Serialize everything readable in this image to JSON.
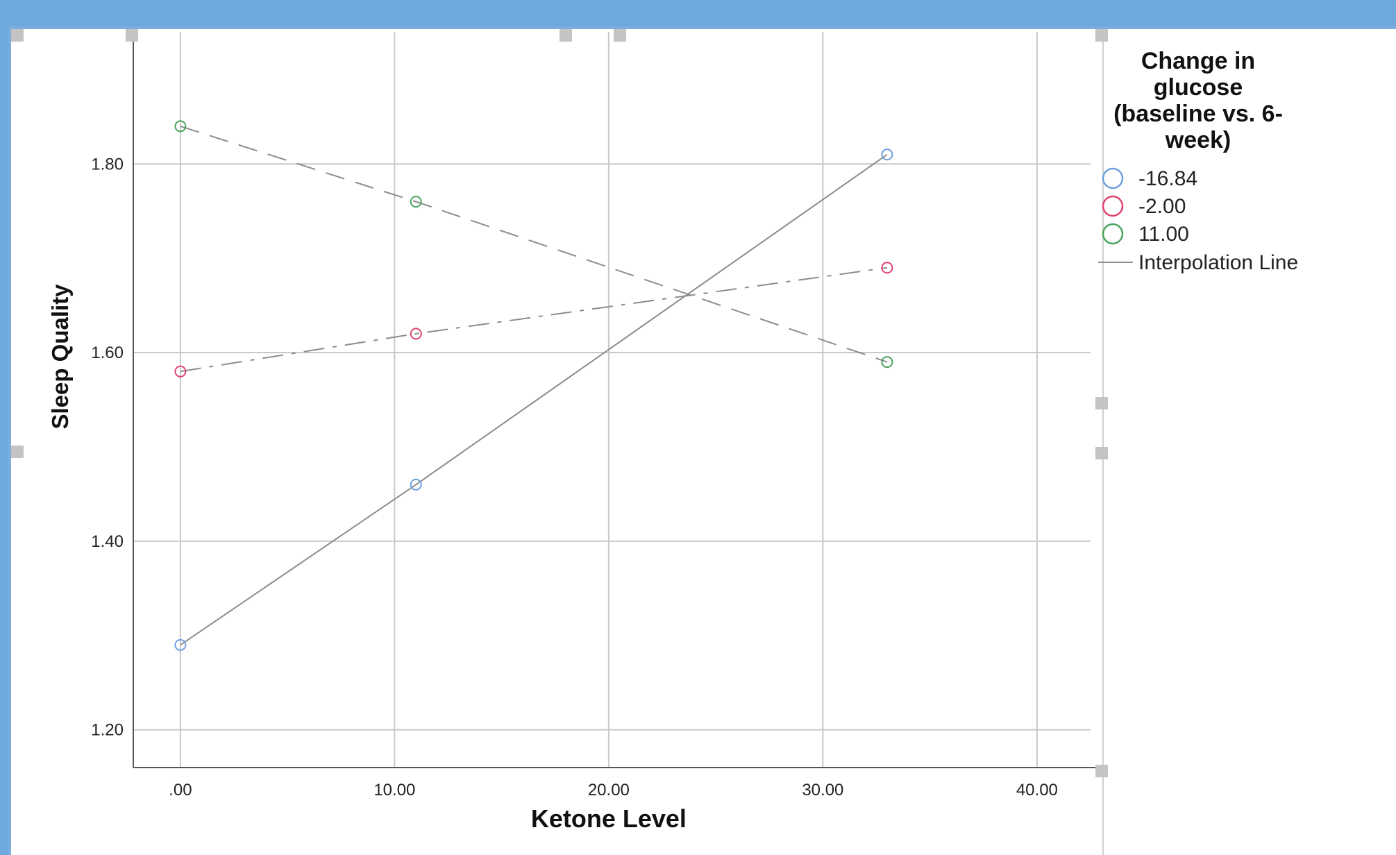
{
  "chart_data": {
    "type": "line",
    "xlabel": "Ketone Level",
    "ylabel": "Sleep Quality",
    "xlim": [
      -2.2,
      42.5
    ],
    "ylim": [
      1.16,
      1.94
    ],
    "x_ticks": [
      0,
      10,
      20,
      30,
      40
    ],
    "x_tick_labels": [
      ".00",
      "10.00",
      "20.00",
      "30.00",
      "40.00"
    ],
    "y_ticks": [
      1.2,
      1.4,
      1.6,
      1.8
    ],
    "y_tick_labels": [
      "1.20",
      "1.40",
      "1.60",
      "1.80"
    ],
    "grid": true,
    "legend": {
      "title": "Change in glucose (baseline vs. 6-week)",
      "title_lines": [
        "Change in",
        "glucose",
        "(baseline vs. 6-",
        "week)"
      ],
      "placement": "right",
      "interpolation_label": "Interpolation Line"
    },
    "series": [
      {
        "name": "-16.84",
        "color": "#6f9fe0",
        "dash": "solid",
        "x": [
          0,
          11,
          33
        ],
        "y": [
          1.29,
          1.46,
          1.81
        ]
      },
      {
        "name": "-2.00",
        "color": "#e0436e",
        "dash": "dashdot",
        "x": [
          0,
          11,
          33
        ],
        "y": [
          1.58,
          1.62,
          1.69
        ]
      },
      {
        "name": "11.00",
        "color": "#4aa35c",
        "dash": "dashed",
        "x": [
          0,
          11,
          33
        ],
        "y": [
          1.84,
          1.76,
          1.59
        ]
      }
    ],
    "line_color": "#8c8c8c"
  }
}
